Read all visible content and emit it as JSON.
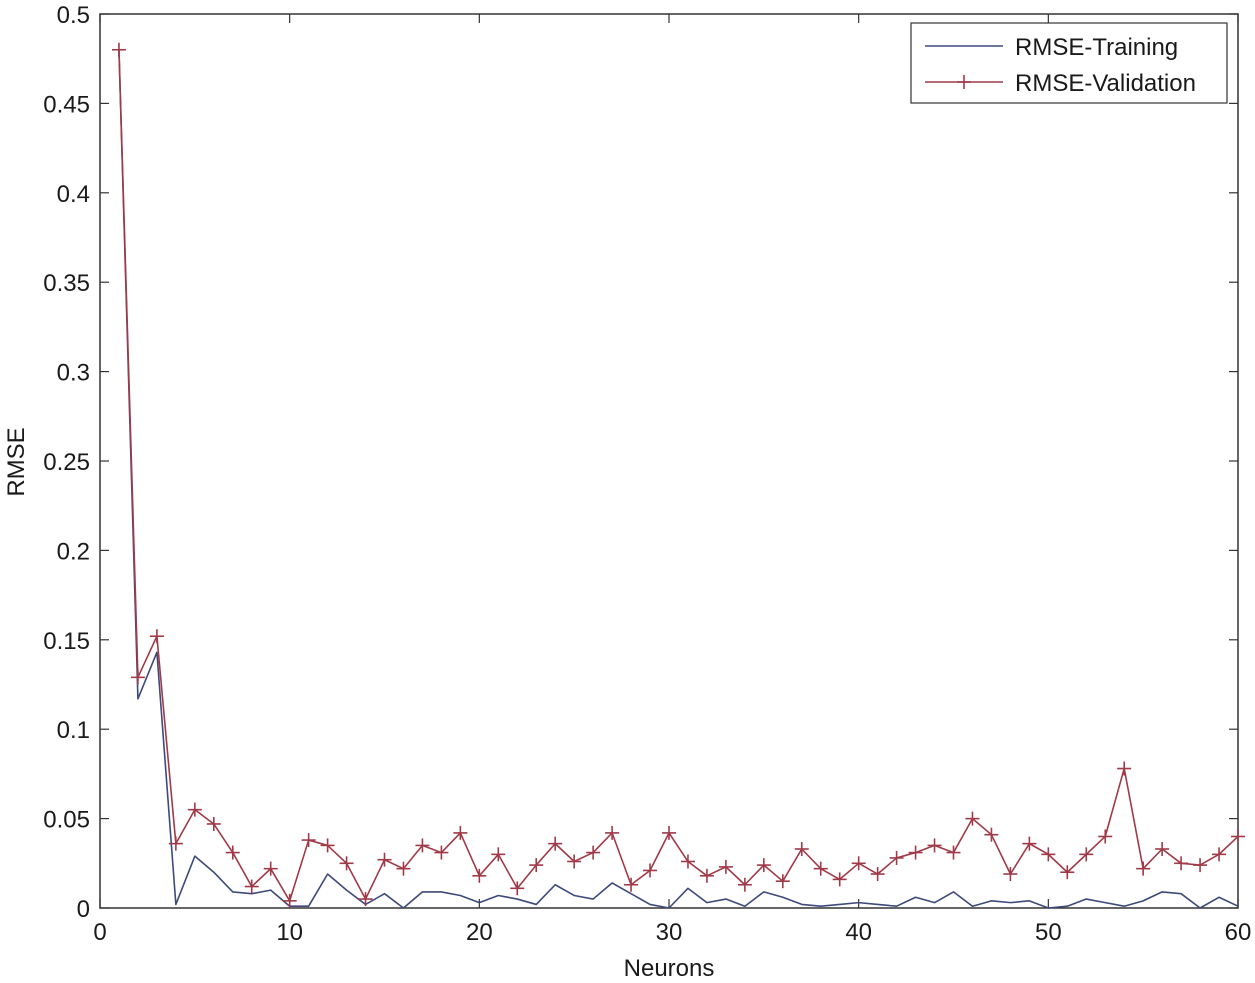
{
  "chart_data": {
    "type": "line",
    "title": "",
    "xlabel": "Neurons",
    "ylabel": "RMSE",
    "xlim": [
      0,
      60
    ],
    "ylim": [
      0,
      0.5
    ],
    "xticks": [
      0,
      10,
      20,
      30,
      40,
      50,
      60
    ],
    "yticks": [
      0,
      0.05,
      0.1,
      0.15,
      0.2,
      0.25,
      0.3,
      0.35,
      0.4,
      0.45,
      0.5
    ],
    "xtick_labels": [
      "0",
      "10",
      "20",
      "30",
      "40",
      "50",
      "60"
    ],
    "ytick_labels": [
      "0",
      "0.05",
      "0.1",
      "0.15",
      "0.2",
      "0.25",
      "0.3",
      "0.35",
      "0.4",
      "0.45",
      "0.5"
    ],
    "grid": false,
    "legend_position": "top-right",
    "x": [
      1,
      2,
      3,
      4,
      5,
      6,
      7,
      8,
      9,
      10,
      11,
      12,
      13,
      14,
      15,
      16,
      17,
      18,
      19,
      20,
      21,
      22,
      23,
      24,
      25,
      26,
      27,
      28,
      29,
      30,
      31,
      32,
      33,
      34,
      35,
      36,
      37,
      38,
      39,
      40,
      41,
      42,
      43,
      44,
      45,
      46,
      47,
      48,
      49,
      50,
      51,
      52,
      53,
      54,
      55,
      56,
      57,
      58,
      59,
      60
    ],
    "series": [
      {
        "name": "RMSE-Training",
        "color": "#3d4a7a",
        "marker": "none",
        "values": [
          0.48,
          0.117,
          0.143,
          0.002,
          0.029,
          0.02,
          0.009,
          0.008,
          0.01,
          0.001,
          0.001,
          0.019,
          0.01,
          0.002,
          0.008,
          0.0,
          0.009,
          0.009,
          0.007,
          0.003,
          0.007,
          0.005,
          0.002,
          0.013,
          0.007,
          0.005,
          0.014,
          0.008,
          0.002,
          0.0,
          0.011,
          0.003,
          0.005,
          0.001,
          0.009,
          0.006,
          0.002,
          0.001,
          0.002,
          0.003,
          0.002,
          0.001,
          0.006,
          0.003,
          0.009,
          0.001,
          0.004,
          0.003,
          0.004,
          0.0,
          0.001,
          0.005,
          0.003,
          0.001,
          0.004,
          0.009,
          0.008,
          0.0,
          0.006,
          0.001
        ]
      },
      {
        "name": "RMSE-Validation",
        "color": "#a03a48",
        "marker": "+",
        "values": [
          0.48,
          0.129,
          0.152,
          0.036,
          0.055,
          0.047,
          0.031,
          0.012,
          0.022,
          0.004,
          0.038,
          0.035,
          0.025,
          0.005,
          0.027,
          0.022,
          0.035,
          0.031,
          0.042,
          0.018,
          0.03,
          0.011,
          0.024,
          0.036,
          0.026,
          0.031,
          0.042,
          0.013,
          0.021,
          0.042,
          0.026,
          0.018,
          0.023,
          0.013,
          0.024,
          0.015,
          0.033,
          0.022,
          0.016,
          0.025,
          0.019,
          0.028,
          0.031,
          0.035,
          0.031,
          0.05,
          0.041,
          0.019,
          0.036,
          0.03,
          0.02,
          0.03,
          0.04,
          0.078,
          0.022,
          0.033,
          0.025,
          0.024,
          0.03,
          0.04
        ]
      }
    ]
  }
}
